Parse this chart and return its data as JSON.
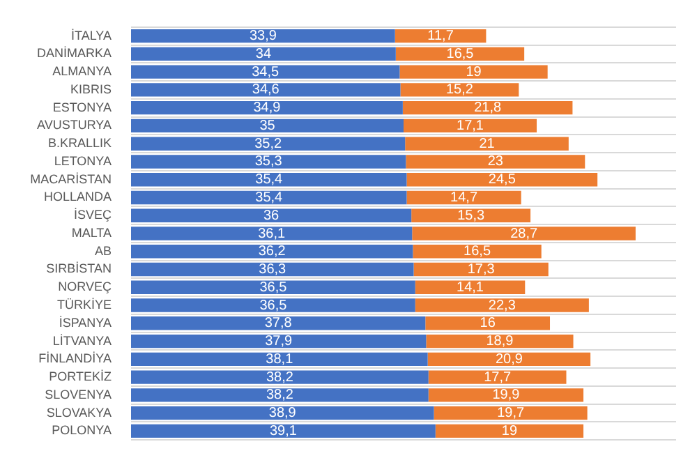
{
  "chart_data": {
    "type": "bar",
    "orientation": "horizontal",
    "stacked": true,
    "categories": [
      "İTALYA",
      "DANİMARKA",
      "ALMANYA",
      "KIBRIS",
      "ESTONYA",
      "AVUSTURYA",
      "B.KRALLIK",
      "LETONYA",
      "MACARİSTAN",
      "HOLLANDA",
      "İSVEÇ",
      "MALTA",
      "AB",
      "SIRBİSTAN",
      "NORVEÇ",
      "TÜRKİYE",
      "İSPANYA",
      "LİTVANYA",
      "FİNLANDİYA",
      "PORTEKİZ",
      "SLOVENYA",
      "SLOVAKYA",
      "POLONYA"
    ],
    "series": [
      {
        "color": "#4472c4",
        "values": [
          33.9,
          34,
          34.5,
          34.6,
          34.9,
          35,
          35.2,
          35.3,
          35.4,
          35.4,
          36,
          36.1,
          36.2,
          36.3,
          36.5,
          36.5,
          37.8,
          37.9,
          38.1,
          38.2,
          38.2,
          38.9,
          39.1
        ],
        "value_labels": [
          "33,9",
          "34",
          "34,5",
          "34,6",
          "34,9",
          "35",
          "35,2",
          "35,3",
          "35,4",
          "35,4",
          "36",
          "36,1",
          "36,2",
          "36,3",
          "36,5",
          "36,5",
          "37,8",
          "37,9",
          "38,1",
          "38,2",
          "38,2",
          "38,9",
          "39,1"
        ]
      },
      {
        "color": "#ed7d31",
        "values": [
          11.7,
          16.5,
          19,
          15.2,
          21.8,
          17.1,
          21,
          23,
          24.5,
          14.7,
          15.3,
          28.7,
          16.5,
          17.3,
          14.1,
          22.3,
          16,
          18.9,
          20.9,
          17.7,
          19.9,
          19.7,
          19
        ],
        "value_labels": [
          "11,7",
          "16,5",
          "19",
          "15,2",
          "21,8",
          "17,1",
          "21",
          "23",
          "24,5",
          "14,7",
          "15,3",
          "28,7",
          "16,5",
          "17,3",
          "14,1",
          "22,3",
          "16",
          "18,9",
          "20,9",
          "17,7",
          "19,9",
          "19,7",
          "19"
        ]
      }
    ],
    "xlim": [
      0,
      70
    ],
    "grid": "y",
    "legend": false,
    "tick_labels": "y"
  }
}
